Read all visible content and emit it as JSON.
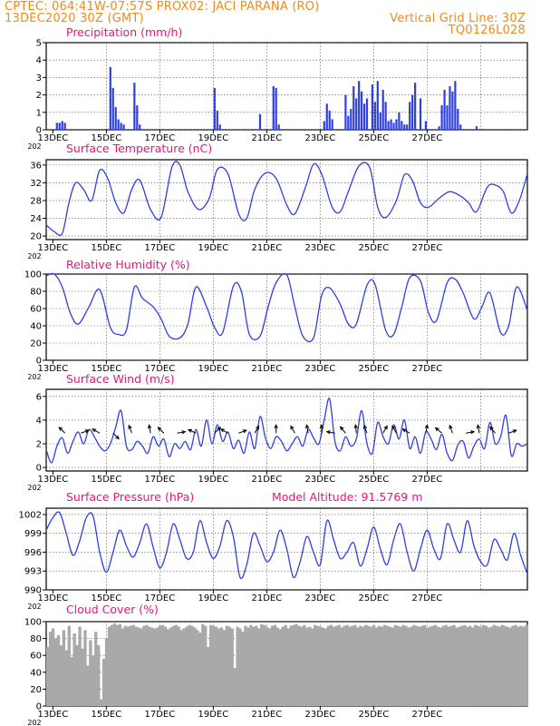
{
  "header": {
    "line1_left": "CPTEC:  064:41W-07:57S  PROX02: JACI PARANA (RO)",
    "line2_left": "13DEC2020 30Z (GMT)",
    "line2_right": "Vertical Grid Line: 30Z",
    "line3_right": "TQ0126L028"
  },
  "colors": {
    "header": "#f08a1c",
    "title": "#e8157a",
    "line": "#2f3fe0",
    "bar": "#2f3fe0",
    "cloud": "#a9a9a9",
    "arrow": "#000000"
  },
  "date_labels": [
    "13DEC",
    "15DEC",
    "17DEC",
    "19DEC",
    "21DEC",
    "23DEC",
    "25DEC",
    "27DEC"
  ],
  "date_sublabel": "202",
  "chart_data": [
    {
      "type": "bar",
      "title": "Precipitation (mm/h)",
      "ylim": [
        0,
        5
      ],
      "yticks": [
        "0",
        "1",
        "2",
        "3",
        "4",
        "5"
      ],
      "x_unit": "days since 13DEC 00Z",
      "x": [
        0.2,
        0.3,
        0.4,
        0.5,
        2.2,
        2.3,
        2.4,
        2.5,
        2.6,
        2.7,
        3.1,
        3.2,
        3.3,
        6.1,
        6.2,
        6.3,
        7.8,
        8.3,
        8.4,
        8.5,
        10.2,
        10.3,
        10.4,
        10.5,
        11.0,
        11.1,
        11.2,
        11.3,
        11.4,
        11.5,
        11.6,
        11.7,
        11.8,
        12.0,
        12.1,
        12.2,
        12.3,
        12.4,
        12.5,
        12.6,
        12.7,
        12.8,
        12.9,
        13.0,
        13.1,
        13.2,
        13.3,
        13.4,
        13.5,
        13.6,
        13.8,
        14.0,
        14.5,
        14.6,
        14.7,
        14.8,
        14.9,
        15.0,
        15.1,
        15.2,
        15.3,
        15.9
      ],
      "values": [
        0.4,
        0.4,
        0.5,
        0.4,
        3.6,
        2.4,
        1.3,
        0.6,
        0.4,
        0.3,
        2.7,
        1.4,
        0.3,
        2.4,
        1.1,
        0.3,
        0.9,
        2.5,
        2.4,
        0.3,
        0.5,
        1.5,
        1.1,
        0.6,
        2.0,
        0.8,
        1.2,
        2.5,
        1.8,
        2.8,
        2.2,
        1.5,
        1.8,
        2.6,
        1.6,
        2.8,
        1.0,
        2.3,
        1.6,
        0.5,
        0.6,
        0.4,
        0.6,
        1.0,
        0.5,
        0.3,
        0.3,
        1.6,
        2.0,
        2.7,
        1.8,
        0.5,
        0.2,
        1.4,
        2.3,
        1.4,
        2.5,
        2.2,
        2.8,
        1.2,
        0.3,
        0.2
      ]
    },
    {
      "type": "line",
      "title": "Surface Temperature (nC)",
      "ylim": [
        19.2,
        37.2
      ],
      "yticks": [
        "20",
        "24",
        "28",
        "32",
        "36"
      ],
      "x_unit": "days since 13DEC 00Z",
      "x": [
        0,
        0.3,
        0.6,
        0.85,
        1.1,
        1.4,
        1.7,
        2.0,
        2.3,
        2.6,
        2.9,
        3.2,
        3.5,
        3.9,
        4.3,
        4.7,
        5.0,
        5.3,
        5.7,
        6.1,
        6.4,
        6.8,
        7.2,
        7.5,
        7.8,
        8.2,
        8.6,
        9.0,
        9.3,
        9.7,
        10.0,
        10.3,
        10.7,
        11.0,
        11.3,
        11.7,
        12.1,
        12.4,
        12.7,
        13.1,
        13.4,
        13.7,
        14.0,
        14.3,
        14.7,
        15.1,
        15.5,
        15.8,
        16.1,
        16.5,
        16.8,
        17.1,
        17.4,
        17.7,
        18.0
      ],
      "values": [
        22.5,
        21.0,
        20.6,
        27.5,
        32.0,
        30.5,
        28.0,
        34.8,
        33.0,
        27.5,
        25.2,
        30.5,
        32.6,
        26.0,
        24.2,
        35.5,
        36.0,
        30.0,
        26.0,
        28.5,
        35.0,
        34.0,
        25.0,
        24.0,
        30.5,
        34.2,
        33.0,
        27.0,
        25.0,
        31.0,
        36.2,
        34.0,
        26.5,
        25.5,
        30.0,
        35.8,
        35.5,
        26.5,
        24.2,
        28.0,
        33.8,
        32.5,
        27.5,
        26.5,
        28.5,
        30.0,
        29.0,
        27.5,
        25.5,
        31.0,
        31.5,
        30.0,
        25.2,
        28.0,
        34.0
      ]
    },
    {
      "type": "line",
      "title": "Relative Humidity (%)",
      "ylim": [
        0,
        100
      ],
      "yticks": [
        "0",
        "20",
        "40",
        "60",
        "80",
        "100"
      ],
      "x_unit": "days since 13DEC 00Z",
      "x": [
        0,
        0.3,
        0.6,
        0.9,
        1.2,
        1.6,
        2.0,
        2.4,
        2.7,
        3.0,
        3.3,
        3.6,
        4.0,
        4.3,
        4.6,
        5.0,
        5.3,
        5.6,
        6.0,
        6.3,
        6.6,
        7.0,
        7.3,
        7.6,
        8.0,
        8.3,
        8.6,
        9.0,
        9.3,
        9.6,
        10.0,
        10.3,
        10.6,
        11.0,
        11.3,
        11.6,
        12.0,
        12.3,
        12.7,
        13.0,
        13.3,
        13.6,
        14.0,
        14.3,
        14.6,
        15.0,
        15.3,
        15.6,
        16.0,
        16.3,
        16.6,
        17.0,
        17.3,
        17.6,
        18.0
      ],
      "values": [
        98,
        100,
        85,
        55,
        42,
        62,
        82,
        38,
        30,
        35,
        85,
        72,
        62,
        48,
        28,
        26,
        42,
        85,
        62,
        38,
        32,
        86,
        80,
        30,
        28,
        62,
        90,
        99,
        62,
        28,
        26,
        75,
        84,
        65,
        42,
        42,
        87,
        88,
        35,
        30,
        62,
        96,
        92,
        55,
        46,
        90,
        94,
        78,
        48,
        62,
        78,
        32,
        40,
        85,
        58
      ]
    },
    {
      "type": "line",
      "title": "Surface Wind (m/s)",
      "ylim": [
        -0.3,
        6.6
      ],
      "yticks": [
        "0",
        "2",
        "4",
        "6"
      ],
      "x_unit": "days since 13DEC 00Z",
      "x": [
        0,
        0.2,
        0.4,
        0.6,
        0.8,
        1.0,
        1.2,
        1.4,
        1.6,
        1.8,
        2.0,
        2.2,
        2.4,
        2.6,
        2.8,
        3.0,
        3.2,
        3.4,
        3.6,
        3.8,
        4.0,
        4.2,
        4.4,
        4.6,
        4.8,
        5.0,
        5.2,
        5.4,
        5.6,
        5.8,
        6.0,
        6.2,
        6.4,
        6.6,
        6.8,
        7.0,
        7.2,
        7.4,
        7.6,
        7.8,
        8.0,
        8.2,
        8.4,
        8.6,
        8.8,
        9.0,
        9.2,
        9.4,
        9.6,
        9.8,
        10.0,
        10.2,
        10.4,
        10.6,
        10.8,
        11.0,
        11.2,
        11.4,
        11.6,
        11.8,
        12.0,
        12.2,
        12.4,
        12.6,
        12.8,
        13.0,
        13.2,
        13.4,
        13.6,
        13.8,
        14.0,
        14.2,
        14.4,
        14.6,
        14.8,
        15.0,
        15.2,
        15.4,
        15.6,
        15.8,
        16.0,
        16.2,
        16.4,
        16.6,
        16.8,
        17.0,
        17.2,
        17.4,
        17.6,
        17.8,
        18.0
      ],
      "values": [
        1.5,
        0.4,
        1.8,
        2.5,
        1.2,
        2.2,
        3.0,
        2.0,
        3.2,
        2.6,
        1.8,
        1.4,
        2.0,
        3.4,
        4.8,
        1.8,
        1.5,
        2.2,
        1.8,
        1.2,
        2.6,
        1.8,
        2.4,
        0.9,
        2.0,
        1.6,
        2.2,
        1.5,
        3.2,
        1.8,
        4.0,
        2.0,
        3.6,
        2.2,
        3.0,
        1.6,
        2.3,
        1.2,
        3.0,
        1.6,
        4.3,
        2.5,
        1.6,
        2.6,
        2.2,
        1.4,
        2.0,
        2.6,
        1.8,
        3.2,
        2.5,
        2.0,
        4.0,
        5.8,
        2.2,
        1.4,
        2.6,
        1.8,
        2.4,
        4.8,
        2.0,
        1.2,
        3.8,
        2.6,
        2.0,
        3.6,
        2.4,
        4.0,
        1.6,
        2.6,
        1.2,
        3.0,
        2.4,
        1.5,
        2.8,
        1.2,
        0.6,
        1.9,
        2.2,
        0.8,
        1.8,
        2.4,
        1.6,
        3.8,
        2.0,
        2.6,
        4.4,
        1.0,
        2.0,
        1.8,
        2.0
      ]
    },
    {
      "type": "line",
      "title": "Surface Pressure (hPa)",
      "annotation": "Model Altitude: 91.5769 m",
      "ylim": [
        990,
        1003
      ],
      "yticks": [
        "990",
        "993",
        "996",
        "999",
        "1002"
      ],
      "x_unit": "days since 13DEC 00Z",
      "x": [
        0,
        0.25,
        0.5,
        0.75,
        1.0,
        1.25,
        1.5,
        1.75,
        2.0,
        2.25,
        2.5,
        2.75,
        3.0,
        3.25,
        3.5,
        3.75,
        4.0,
        4.25,
        4.5,
        4.75,
        5.0,
        5.25,
        5.5,
        5.75,
        6.0,
        6.25,
        6.5,
        6.75,
        7.0,
        7.25,
        7.5,
        7.75,
        8.0,
        8.25,
        8.5,
        8.75,
        9.0,
        9.25,
        9.5,
        9.75,
        10.0,
        10.25,
        10.5,
        10.75,
        11.0,
        11.25,
        11.5,
        11.75,
        12.0,
        12.25,
        12.5,
        12.75,
        13.0,
        13.25,
        13.5,
        13.75,
        14.0,
        14.25,
        14.5,
        14.75,
        15.0,
        15.25,
        15.5,
        15.75,
        16.0,
        16.25,
        16.5,
        16.75,
        17.0,
        17.25,
        17.5,
        17.75,
        18.0
      ],
      "values": [
        999.5,
        1001.5,
        1002.3,
        999.0,
        995.5,
        997.8,
        1001.5,
        1001.8,
        996.0,
        992.8,
        996.0,
        999.5,
        997.0,
        995.2,
        997.5,
        1000.5,
        996.8,
        993.5,
        996.0,
        1000.5,
        998.0,
        995.0,
        996.0,
        1001.0,
        997.5,
        995.0,
        997.0,
        1001.0,
        998.5,
        992.0,
        994.0,
        999.0,
        997.0,
        994.5,
        996.0,
        999.5,
        996.5,
        992.0,
        994.5,
        998.5,
        996.0,
        994.0,
        1001.0,
        998.0,
        995.0,
        996.0,
        997.5,
        993.8,
        996.5,
        1000.0,
        996.5,
        994.0,
        998.0,
        1000.5,
        996.0,
        993.0,
        996.5,
        999.5,
        996.5,
        995.0,
        1000.5,
        998.0,
        996.0,
        1001.0,
        997.0,
        994.5,
        994.0,
        998.0,
        996.5,
        994.8,
        999.0,
        995.5,
        992.5
      ]
    },
    {
      "type": "bar",
      "title": "Cloud Cover (%)",
      "ylim": [
        0,
        100
      ],
      "yticks": [
        "0",
        "20",
        "40",
        "60",
        "80",
        "100"
      ],
      "x_unit": "days since 13DEC 00Z",
      "x": [
        0.0,
        0.1,
        0.2,
        0.3,
        0.4,
        0.5,
        0.6,
        0.7,
        0.8,
        0.9,
        1.0,
        1.1,
        1.2,
        1.3,
        1.4,
        1.5,
        1.6,
        1.7,
        1.8,
        1.9,
        2.0,
        2.1,
        2.2,
        2.3,
        2.4,
        2.5,
        2.6,
        2.7,
        2.8,
        2.9,
        3.0,
        3.1,
        3.2,
        3.3,
        3.4,
        3.5,
        3.6,
        3.7,
        3.8,
        3.9,
        4.0,
        4.1,
        4.2,
        4.3,
        4.4,
        4.5,
        4.6,
        4.7,
        4.8,
        4.9,
        5.0,
        5.1,
        5.2,
        5.3,
        5.4,
        5.5,
        5.6,
        5.7,
        5.8,
        5.9,
        6.0,
        6.1,
        6.2,
        6.3,
        6.4,
        6.5,
        6.6,
        6.7,
        6.8,
        6.9,
        7.0,
        7.1,
        7.2,
        7.3,
        7.4,
        7.5,
        7.6,
        7.7,
        7.8,
        7.9,
        8.0,
        8.1,
        8.2,
        8.3,
        8.4,
        8.5,
        8.6,
        8.7,
        8.8,
        8.9,
        9.0,
        9.1,
        9.2,
        9.3,
        9.4,
        9.5,
        9.6,
        9.7,
        9.8,
        9.9,
        10.0,
        10.1,
        10.2,
        10.3,
        10.4,
        10.5,
        10.6,
        10.7,
        10.8,
        10.9,
        11.0,
        11.1,
        11.2,
        11.3,
        11.4,
        11.5,
        11.6,
        11.7,
        11.8,
        11.9,
        12.0,
        12.1,
        12.2,
        12.3,
        12.4,
        12.5,
        12.6,
        12.7,
        12.8,
        12.9,
        13.0,
        13.1,
        13.2,
        13.3,
        13.4,
        13.5,
        13.6,
        13.7,
        13.8,
        13.9,
        14.0,
        14.1,
        14.2,
        14.3,
        14.4,
        14.5,
        14.6,
        14.7,
        14.8,
        14.9,
        15.0,
        15.1,
        15.2,
        15.3,
        15.4,
        15.5,
        15.6,
        15.7,
        15.8,
        15.9,
        16.0,
        16.1,
        16.2,
        16.3,
        16.4,
        16.5,
        16.6,
        16.7,
        16.8,
        16.9,
        17.0,
        17.1,
        17.2,
        17.3,
        17.4,
        17.5,
        17.6,
        17.7,
        17.8,
        17.9
      ],
      "values": [
        70,
        88,
        92,
        80,
        84,
        72,
        90,
        66,
        95,
        58,
        86,
        72,
        94,
        68,
        90,
        48,
        78,
        60,
        88,
        72,
        8,
        56,
        80,
        94,
        96,
        98,
        96,
        97,
        92,
        95,
        94,
        95,
        96,
        94,
        93,
        92,
        95,
        96,
        94,
        93,
        92,
        93,
        95,
        96,
        94,
        91,
        93,
        95,
        96,
        94,
        90,
        92,
        94,
        96,
        95,
        93,
        90,
        87,
        97,
        95,
        70,
        96,
        95,
        94,
        92,
        93,
        90,
        95,
        94,
        92,
        45,
        94,
        92,
        88,
        95,
        93,
        96,
        94,
        95,
        92,
        97,
        96,
        94,
        92,
        95,
        96,
        93,
        91,
        94,
        96,
        92,
        95,
        96,
        97,
        95,
        94,
        96,
        93,
        94,
        92,
        96,
        95,
        94,
        93,
        92,
        95,
        96,
        94,
        95,
        96,
        93,
        95,
        96,
        94,
        95,
        96,
        93,
        95,
        94,
        96,
        95,
        94,
        96,
        93,
        95,
        94,
        96,
        95,
        94,
        93,
        96,
        95,
        94,
        96,
        95,
        93,
        94,
        96,
        95,
        94,
        95,
        96,
        93,
        94,
        95,
        96,
        94,
        93,
        95,
        96,
        94,
        95,
        96,
        93,
        94,
        95,
        96,
        94,
        95,
        93,
        96,
        95,
        94,
        96,
        95,
        93,
        94,
        96,
        95,
        94,
        96,
        95,
        94,
        93,
        95,
        96,
        94,
        95,
        94,
        96
      ]
    }
  ],
  "wind_arrows": {
    "note": "direction arrows drawn over wind panel",
    "x": [
      0.7,
      1.3,
      2.0,
      2.5,
      3.2,
      3.9,
      4.4,
      4.9,
      5.6,
      6.3,
      6.8,
      7.2,
      7.8,
      8.6,
      9.3,
      9.8,
      10.3,
      10.8,
      11.2,
      11.6,
      12.0,
      12.6,
      13.1,
      13.6,
      14.2,
      14.8,
      15.2,
      15.7,
      16.2,
      16.8,
      17.3
    ],
    "angle_deg": [
      135,
      20,
      150,
      -45,
      110,
      100,
      135,
      10,
      155,
      45,
      150,
      20,
      60,
      90,
      120,
      100,
      90,
      170,
      130,
      95,
      110,
      60,
      120,
      150,
      80,
      140,
      110,
      10,
      100,
      130,
      20
    ]
  }
}
